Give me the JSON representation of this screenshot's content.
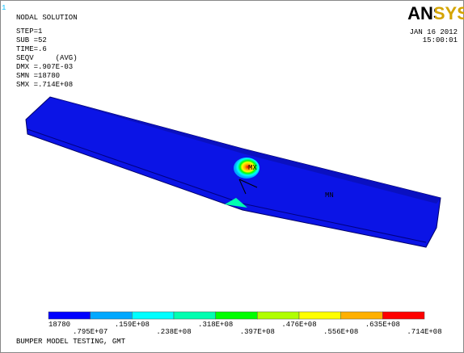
{
  "window_number": "1",
  "header": {
    "lines": [
      "NODAL SOLUTION",
      "STEP=1",
      "SUB =52",
      "TIME=.6",
      "SEQV     (AVG)",
      "DMX =.907E-03",
      "SMN =18780",
      "SMX =.714E+08"
    ]
  },
  "logo": "ANSYS",
  "date": "JAN 16 2012",
  "time": "15:00:01",
  "markers": {
    "max": "MX",
    "min": "MN"
  },
  "legend": {
    "colors": [
      "#0000ff",
      "#00a8ff",
      "#00ffff",
      "#00ffb0",
      "#00ff00",
      "#b0ff00",
      "#ffff00",
      "#ffb000",
      "#ff0000"
    ],
    "labels": [
      "18780",
      ".795E+07",
      ".159E+08",
      ".238E+08",
      ".318E+08",
      ".397E+08",
      ".476E+08",
      ".556E+08",
      ".635E+08",
      ".714E+08"
    ]
  },
  "footer": "BUMPER MODEL TESTING, GMT"
}
